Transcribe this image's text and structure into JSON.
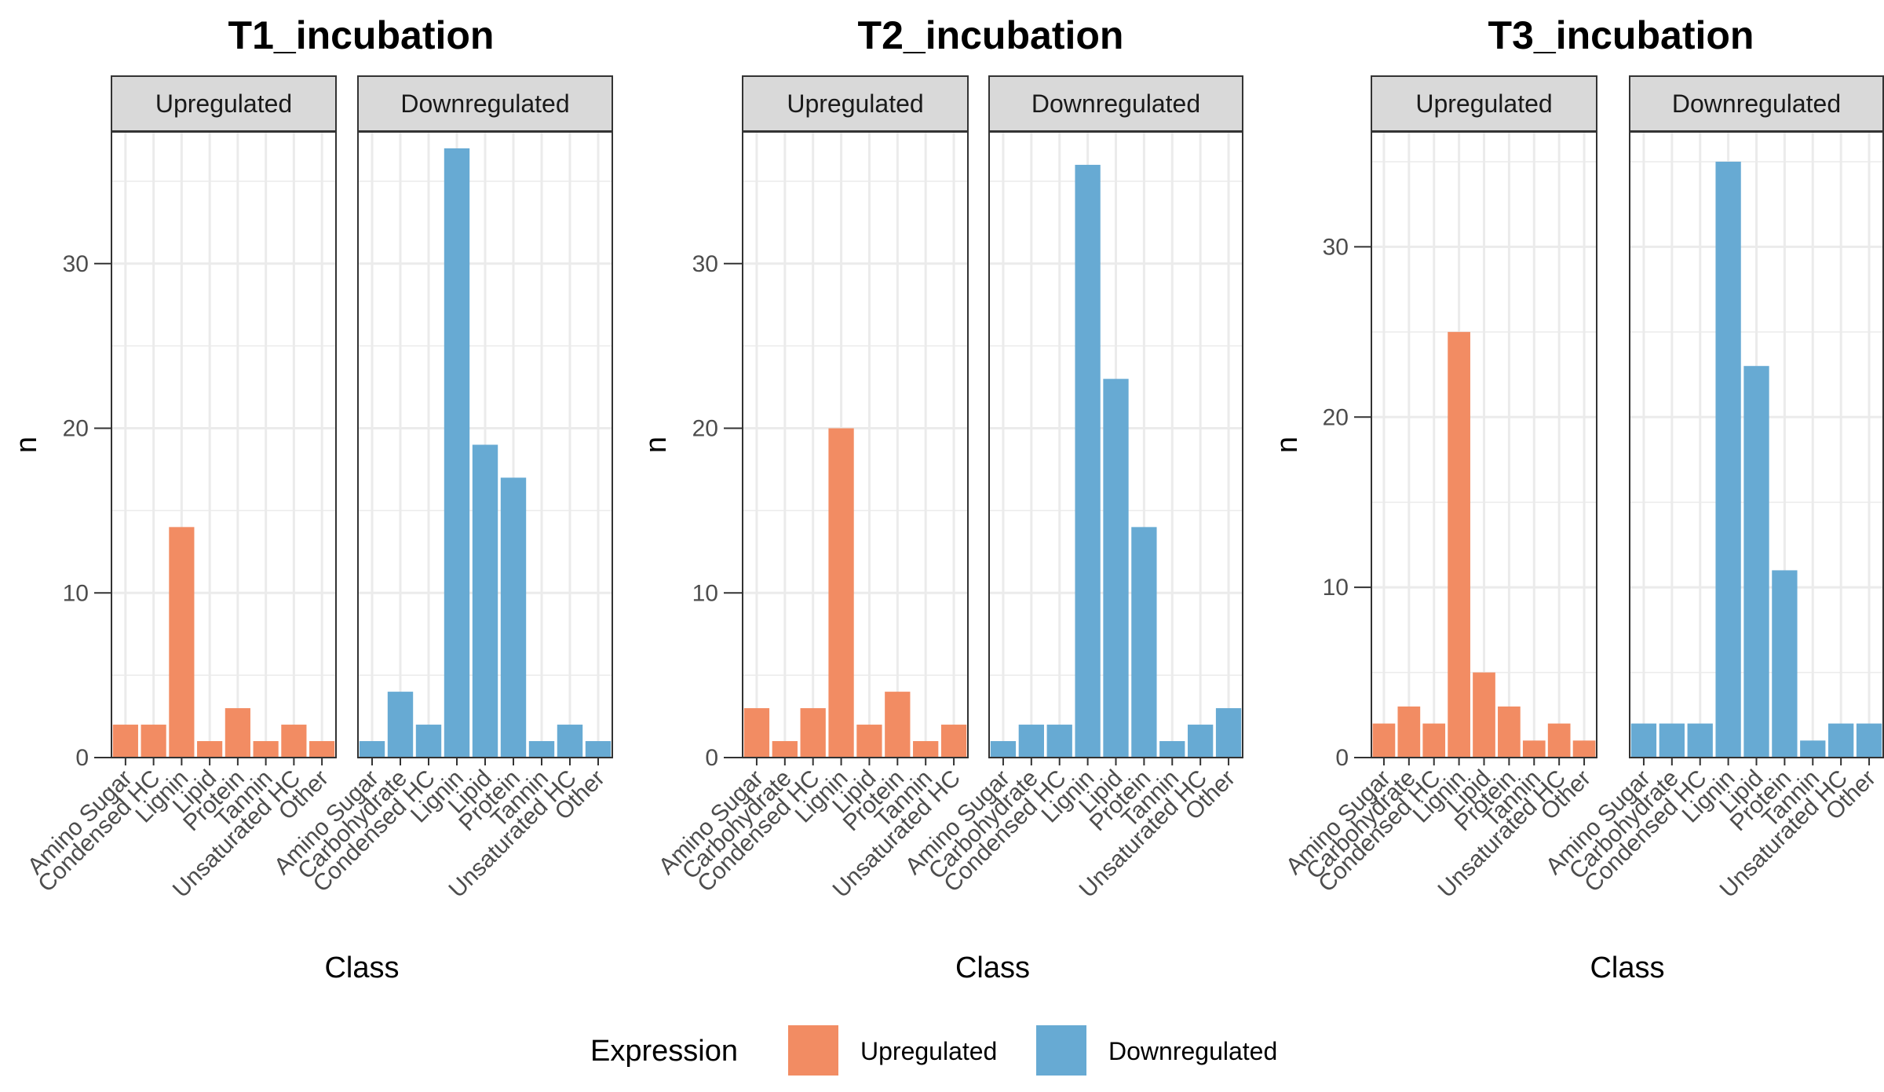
{
  "chart_data": [
    {
      "type": "bar",
      "title": "T1_incubation",
      "xlabel": "Class",
      "ylabel": "n",
      "ylim": [
        0,
        38
      ],
      "yticks": [
        0,
        10,
        20,
        30
      ],
      "grid": true,
      "facets": [
        {
          "strip": "Upregulated",
          "categories": [
            "Amino Sugar",
            "Condensed HC",
            "Lignin",
            "Lipid",
            "Protein",
            "Tannin",
            "Unsaturated HC",
            "Other"
          ],
          "values": [
            2,
            2,
            14,
            1,
            3,
            1,
            2,
            1
          ]
        },
        {
          "strip": "Downregulated",
          "categories": [
            "Amino Sugar",
            "Carbohydrate",
            "Condensed HC",
            "Lignin",
            "Lipid",
            "Protein",
            "Tannin",
            "Unsaturated HC",
            "Other"
          ],
          "values": [
            1,
            4,
            2,
            37,
            19,
            17,
            1,
            2,
            1
          ]
        }
      ]
    },
    {
      "type": "bar",
      "title": "T2_incubation",
      "xlabel": "Class",
      "ylabel": "n",
      "ylim": [
        0,
        38
      ],
      "yticks": [
        0,
        10,
        20,
        30
      ],
      "grid": true,
      "facets": [
        {
          "strip": "Upregulated",
          "categories": [
            "Amino Sugar",
            "Carbohydrate",
            "Condensed HC",
            "Lignin",
            "Lipid",
            "Protein",
            "Tannin",
            "Unsaturated HC"
          ],
          "values": [
            3,
            1,
            3,
            20,
            2,
            4,
            1,
            2
          ]
        },
        {
          "strip": "Downregulated",
          "categories": [
            "Amino Sugar",
            "Carbohydrate",
            "Condensed HC",
            "Lignin",
            "Lipid",
            "Protein",
            "Tannin",
            "Unsaturated HC",
            "Other"
          ],
          "values": [
            1,
            2,
            2,
            36,
            23,
            14,
            1,
            2,
            3
          ]
        }
      ]
    },
    {
      "type": "bar",
      "title": "T3_incubation",
      "xlabel": "Class",
      "ylabel": "n",
      "ylim": [
        0,
        36.75
      ],
      "yticks": [
        0,
        10,
        20,
        30
      ],
      "grid": true,
      "facets": [
        {
          "strip": "Upregulated",
          "categories": [
            "Amino Sugar",
            "Carbohydrate",
            "Condensed HC",
            "Lignin",
            "Lipid",
            "Protein",
            "Tannin",
            "Unsaturated HC",
            "Other"
          ],
          "values": [
            2,
            3,
            2,
            25,
            5,
            3,
            1,
            2,
            1
          ]
        },
        {
          "strip": "Downregulated",
          "categories": [
            "Amino Sugar",
            "Carbohydrate",
            "Condensed HC",
            "Lignin",
            "Lipid",
            "Protein",
            "Tannin",
            "Unsaturated HC",
            "Other"
          ],
          "values": [
            2,
            2,
            2,
            35,
            23,
            11,
            1,
            2,
            2
          ]
        }
      ]
    }
  ],
  "legend": {
    "title": "Expression",
    "placement": "bottom",
    "items": [
      {
        "label": "Upregulated",
        "color": "#F28C63"
      },
      {
        "label": "Downregulated",
        "color": "#67AAD3"
      }
    ]
  }
}
